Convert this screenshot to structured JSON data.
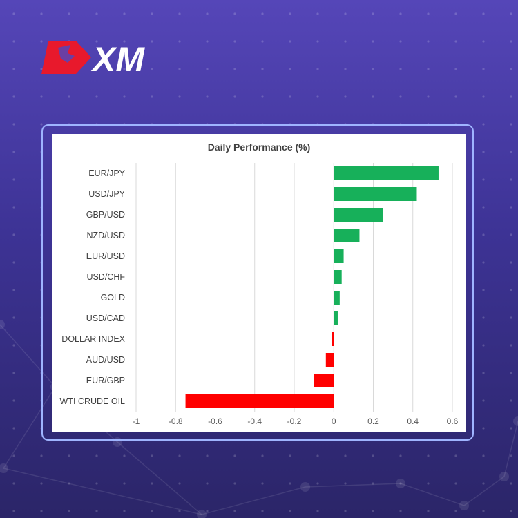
{
  "brand": {
    "logo_text": "XM"
  },
  "colors": {
    "positive": "#17b05a",
    "negative": "#ff0000",
    "grid": "#d9d9d9",
    "text": "#404040"
  },
  "chart_data": {
    "type": "bar",
    "orientation": "horizontal",
    "title": "Daily Performance (%)",
    "categories": [
      "EUR/JPY",
      "USD/JPY",
      "GBP/USD",
      "NZD/USD",
      "EUR/USD",
      "USD/CHF",
      "GOLD",
      "USD/CAD",
      "DOLLAR INDEX",
      "AUD/USD",
      "EUR/GBP",
      "WTI CRUDE OIL"
    ],
    "values": [
      0.53,
      0.42,
      0.25,
      0.13,
      0.05,
      0.04,
      0.03,
      0.02,
      -0.01,
      -0.04,
      -0.1,
      -0.75
    ],
    "xlim": [
      -1,
      0.6
    ],
    "xticks": [
      "-1",
      "-0.8",
      "-0.6",
      "-0.4",
      "-0.2",
      "0",
      "0.2",
      "0.4",
      "0.6"
    ],
    "grid": true,
    "legend": "none"
  }
}
